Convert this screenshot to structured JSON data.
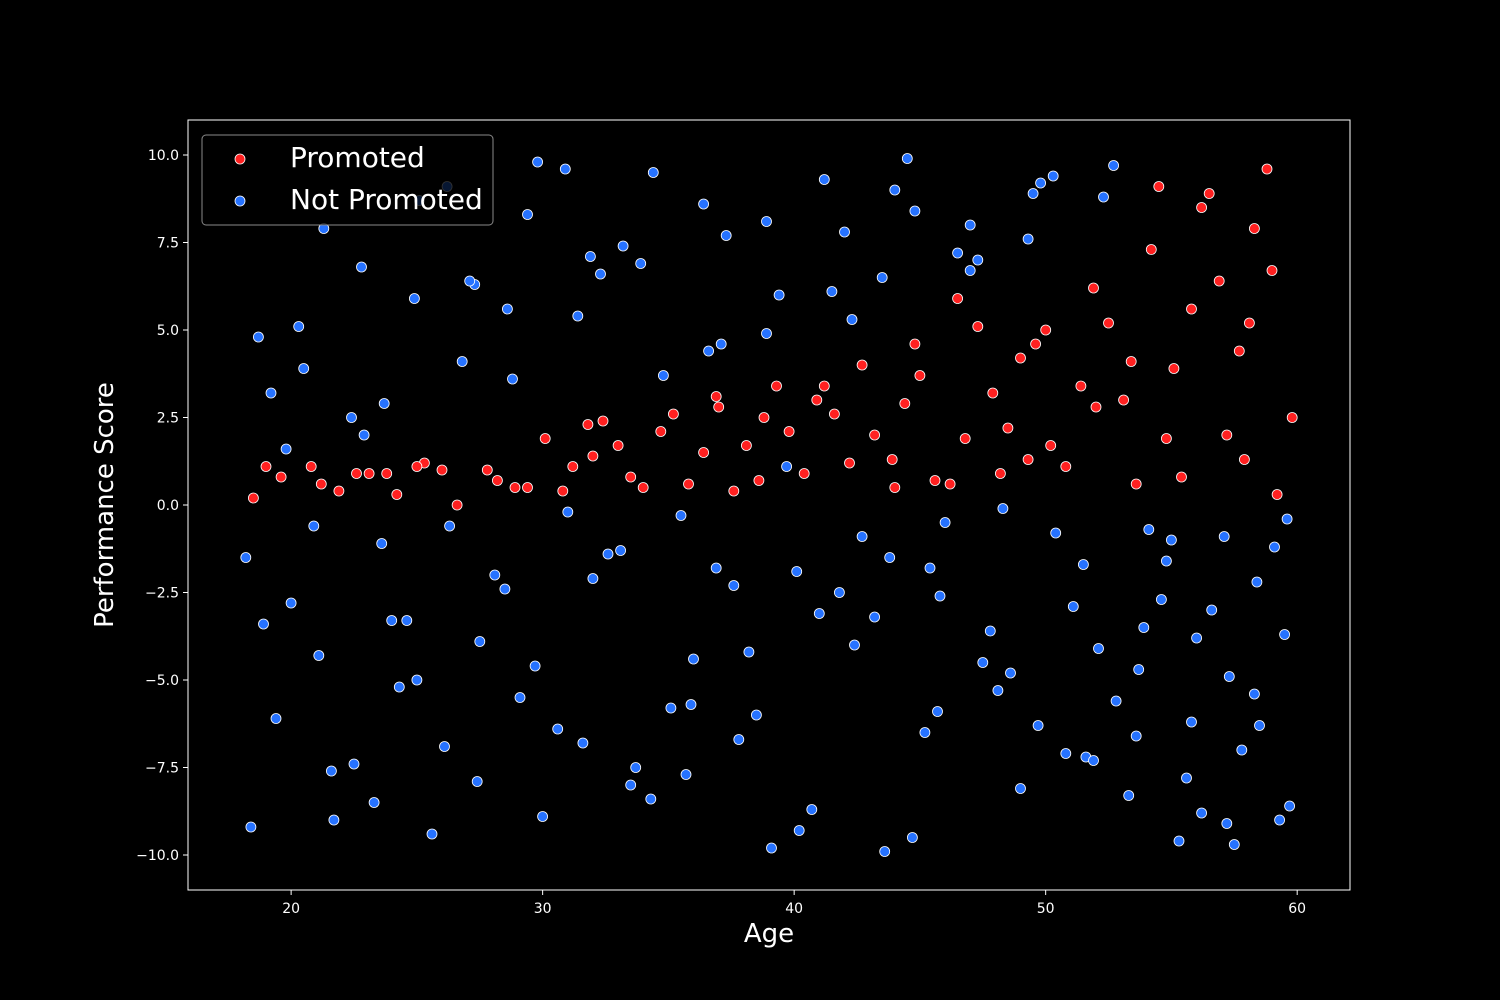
{
  "chart_data": {
    "type": "scatter",
    "title": "",
    "xlabel": "Age",
    "ylabel": "Performance Score",
    "xlim": [
      15.9,
      62.1
    ],
    "ylim": [
      -11.0,
      11.0
    ],
    "x_ticks": [
      20,
      30,
      40,
      50,
      60
    ],
    "y_ticks": [
      -10.0,
      -7.5,
      -5.0,
      -2.5,
      0.0,
      2.5,
      5.0,
      7.5,
      10.0
    ],
    "x_tick_labels": [
      "20",
      "30",
      "40",
      "50",
      "60"
    ],
    "y_tick_labels": [
      "−10.0",
      "−7.5",
      "−5.0",
      "−2.5",
      "0.0",
      "2.5",
      "5.0",
      "7.5",
      "10.0"
    ],
    "legend": {
      "position": "upper-left",
      "entries": [
        "Promoted",
        "Not Promoted"
      ]
    },
    "background": "#000000",
    "spine_color": "#ffffff",
    "grid": false,
    "series": [
      {
        "name": "Promoted",
        "color": "#ff2020",
        "edge_color": "#ffffff",
        "rule": "Performance Score between 0 and a threshold that rises with Age (about 1.4 at age 18 to about 10 at age 60, with bumps near ages 38 and 48)",
        "x": [
          18.5,
          19.6,
          20.8,
          21.9,
          23.1,
          24.2,
          25.3,
          26.6,
          27.8,
          28.9,
          30.1,
          31.2,
          32.4,
          33.5,
          34.7,
          35.8,
          37.0,
          38.1,
          39.3,
          40.4,
          41.6,
          42.7,
          43.9,
          45.0,
          46.2,
          47.3,
          48.5,
          49.6,
          50.8,
          51.9,
          53.1,
          54.2,
          55.4,
          56.5,
          57.7,
          58.8,
          59.8,
          19.0,
          21.2,
          23.8,
          26.0,
          28.2,
          30.8,
          33.0,
          35.2,
          37.6,
          39.8,
          42.2,
          44.4,
          46.8,
          49.0,
          51.4,
          53.6,
          55.8,
          57.2,
          59.2,
          22.6,
          25.0,
          29.4,
          31.8,
          34.0,
          36.4,
          38.6,
          40.9,
          43.2,
          45.6,
          47.9,
          50.2,
          52.5,
          54.8,
          56.9,
          58.3,
          32.0,
          36.9,
          41.2,
          44.8,
          48.2,
          52.0,
          55.1,
          57.9,
          38.8,
          46.5,
          50.0,
          53.4,
          56.2,
          59.0,
          44.0,
          49.3,
          54.5,
          58.1
        ],
        "y": [
          0.2,
          0.8,
          1.1,
          0.4,
          0.9,
          0.3,
          1.2,
          0.0,
          1.0,
          0.5,
          1.9,
          1.1,
          2.4,
          0.8,
          2.1,
          0.6,
          2.8,
          1.7,
          3.4,
          0.9,
          2.6,
          4.0,
          1.3,
          3.7,
          0.6,
          5.1,
          2.2,
          4.6,
          1.1,
          6.2,
          3.0,
          7.3,
          0.8,
          8.9,
          4.4,
          9.6,
          2.5,
          1.1,
          0.6,
          0.9,
          1.0,
          0.7,
          0.4,
          1.7,
          2.6,
          0.4,
          2.1,
          1.2,
          2.9,
          1.9,
          4.2,
          3.4,
          0.6,
          5.6,
          2.0,
          0.3,
          0.9,
          1.1,
          0.5,
          2.3,
          0.5,
          1.5,
          0.7,
          3.0,
          2.0,
          0.7,
          3.2,
          1.7,
          5.2,
          1.9,
          6.4,
          7.9,
          1.4,
          3.1,
          3.4,
          4.6,
          0.9,
          2.8,
          3.9,
          1.3,
          2.5,
          5.9,
          5.0,
          4.1,
          8.5,
          6.7,
          0.5,
          1.3,
          9.1,
          5.2
        ]
      },
      {
        "name": "Not Promoted",
        "color": "#2672ff",
        "edge_color": "#ffffff",
        "rule": "all other points: Performance Score below 0, or above the rising threshold",
        "x": [
          18.2,
          19.4,
          20.5,
          21.7,
          22.8,
          24.0,
          25.1,
          26.3,
          27.4,
          28.6,
          29.7,
          30.9,
          32.0,
          33.2,
          34.3,
          35.5,
          36.6,
          37.8,
          38.9,
          40.1,
          41.2,
          42.4,
          43.5,
          44.7,
          45.8,
          47.0,
          48.1,
          49.3,
          50.4,
          51.6,
          52.7,
          53.9,
          55.0,
          56.2,
          57.3,
          58.5,
          59.6,
          18.7,
          20.0,
          21.3,
          22.5,
          23.7,
          25.0,
          26.2,
          27.5,
          28.8,
          30.0,
          31.4,
          32.6,
          33.9,
          35.1,
          36.4,
          37.6,
          38.9,
          40.2,
          41.5,
          42.7,
          44.0,
          45.2,
          46.5,
          47.8,
          49.0,
          50.3,
          51.5,
          52.8,
          54.1,
          55.3,
          56.6,
          57.8,
          59.1,
          18.4,
          19.8,
          21.1,
          22.4,
          23.6,
          24.9,
          26.1,
          27.3,
          28.5,
          29.8,
          31.0,
          32.3,
          33.5,
          34.8,
          36.0,
          37.3,
          38.5,
          39.7,
          41.0,
          42.3,
          43.6,
          44.8,
          46.0,
          47.3,
          48.6,
          49.8,
          51.1,
          52.3,
          53.6,
          54.8,
          56.0,
          57.2,
          58.4,
          59.7,
          18.9,
          20.3,
          21.6,
          22.9,
          24.3,
          25.6,
          26.8,
          28.1,
          29.4,
          30.6,
          31.9,
          33.1,
          34.4,
          35.7,
          36.9,
          38.2,
          39.4,
          40.7,
          42.0,
          43.2,
          44.5,
          45.7,
          47.0,
          48.3,
          49.5,
          50.8,
          52.1,
          53.3,
          54.6,
          55.8,
          57.1,
          58.3,
          59.5,
          19.2,
          23.3,
          27.1,
          31.6,
          35.9,
          39.1,
          43.8,
          47.5,
          51.9,
          55.6,
          59.3,
          20.9,
          24.6,
          29.1,
          33.7,
          37.1,
          41.8,
          45.4,
          49.7,
          53.7,
          57.5
        ],
        "y": [
          -1.5,
          -6.1,
          3.9,
          -9.0,
          6.8,
          -3.3,
          8.7,
          -0.6,
          -7.9,
          5.6,
          -4.6,
          9.6,
          -2.1,
          7.4,
          -8.4,
          -0.3,
          4.4,
          -6.7,
          8.1,
          -1.9,
          9.3,
          -4.0,
          6.5,
          -9.5,
          -2.6,
          8.0,
          -5.3,
          7.6,
          -0.8,
          -7.2,
          9.7,
          -3.5,
          -1.0,
          -8.8,
          -4.9,
          -6.3,
          -0.4,
          4.8,
          -2.8,
          7.9,
          -7.4,
          2.9,
          -5.0,
          9.1,
          -3.9,
          3.6,
          -8.9,
          5.4,
          -1.4,
          6.9,
          -5.8,
          8.6,
          -2.3,
          4.9,
          -9.3,
          6.1,
          -0.9,
          9.0,
          -6.5,
          7.2,
          -3.6,
          -8.1,
          9.4,
          -1.7,
          -5.6,
          -0.7,
          -9.6,
          -3.0,
          -7.0,
          -1.2,
          -9.2,
          1.6,
          -4.3,
          2.5,
          -1.1,
          5.9,
          -6.9,
          6.3,
          -2.4,
          9.8,
          -0.2,
          6.6,
          -8.0,
          3.7,
          -4.4,
          7.7,
          -6.0,
          1.1,
          -3.1,
          5.3,
          -9.9,
          8.4,
          -0.5,
          7.0,
          -4.8,
          9.2,
          -2.9,
          8.8,
          -6.6,
          -1.6,
          -3.8,
          -9.1,
          -2.2,
          -8.6,
          -3.4,
          5.1,
          -7.6,
          2.0,
          -5.2,
          -9.4,
          4.1,
          -2.0,
          8.3,
          -6.4,
          7.1,
          -1.3,
          9.5,
          -7.7,
          -1.8,
          -4.2,
          6.0,
          -8.7,
          7.8,
          -3.2,
          9.9,
          -5.9,
          6.7,
          -0.1,
          8.9,
          -7.1,
          -4.1,
          -8.3,
          -2.7,
          -6.2,
          -0.9,
          -5.4,
          -3.7,
          3.2,
          -8.5,
          6.4,
          -6.8,
          -5.7,
          -9.8,
          -1.5,
          -4.5,
          -7.3,
          -7.8,
          -9.0,
          -0.6,
          -3.3,
          -5.5,
          -7.5,
          4.6,
          -2.5,
          -1.8,
          -6.3,
          -4.7,
          -9.7
        ]
      }
    ]
  }
}
